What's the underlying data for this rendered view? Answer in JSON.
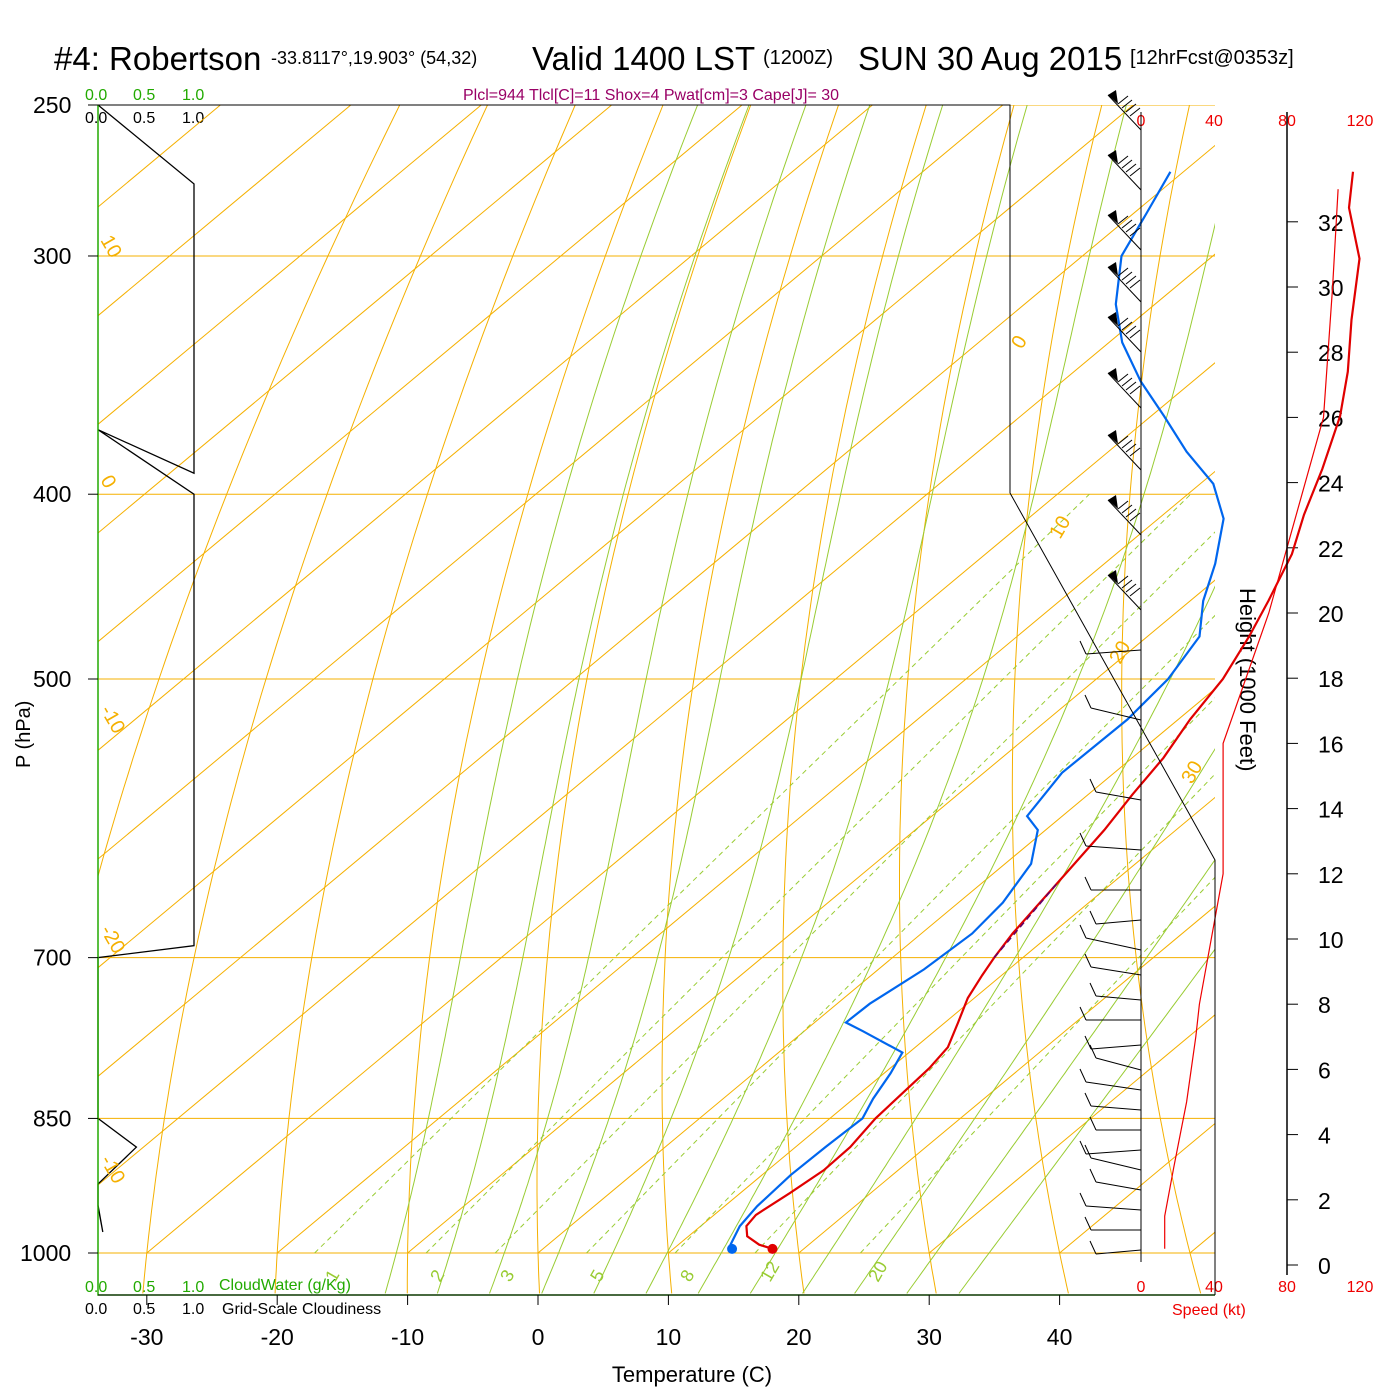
{
  "header": {
    "station": "#4: Robertson",
    "coords": "-33.8117°,19.903° (54,32)",
    "valid": "Valid 1400 LST",
    "zulu": "(1200Z)",
    "date": "SUN 30 Aug 2015",
    "forecast": "[12hrFcst@0353z]",
    "indices": "Plcl=944 Tlcl[C]=11 Shox=4 Pwat[cm]=3 Cape[J]= 30"
  },
  "colors": {
    "isotherm": "#f5b000",
    "dry_adiabat": "#f5b000",
    "moist_adiabat": "#99cc33",
    "mixing_ratio": "#99cc33",
    "temperature": "#e00000",
    "dewpoint": "#0066ee",
    "parcel": "#660066",
    "cloud_green": "#22aa00",
    "speed_red": "#ee0000",
    "indices_text": "#990066"
  },
  "cloud_panel": {
    "top_green_ticks": [
      "0.0",
      "0.5",
      "1.0"
    ],
    "top_black_ticks": [
      "0.0",
      "0.5",
      "1.0"
    ],
    "bottom_green_ticks": [
      "0.0",
      "0.5",
      "1.0"
    ],
    "bottom_black_ticks": [
      "0.0",
      "0.5",
      "1.0"
    ],
    "cloudwater_label": "CloudWater (g/Kg)",
    "cloudiness_label": "Grid-Scale Cloudiness"
  },
  "wind_panel": {
    "speed_ticks": [
      "0",
      "40",
      "80",
      "120"
    ],
    "speed_label": "Speed (kt)",
    "height_label": "Height (1000 Feet)",
    "height_ticks": [
      "0",
      "2",
      "4",
      "6",
      "8",
      "10",
      "12",
      "14",
      "16",
      "18",
      "20",
      "22",
      "24",
      "26",
      "28",
      "30",
      "32"
    ]
  },
  "chart_data": {
    "type": "line",
    "title": "#4: Robertson -33.8117°,19.903° (54,32) Valid 1400 LST (1200Z) SUN 30 Aug 2015 [12hrFcst@0353z]",
    "xlabel": "Temperature (C)",
    "ylabel": "P (hPa)",
    "x_ticks": [
      "-30",
      "-20",
      "-10",
      "0",
      "10",
      "20",
      "30",
      "40"
    ],
    "y_ticks": [
      "250",
      "300",
      "400",
      "500",
      "700",
      "850",
      "1000"
    ],
    "xlim": [
      -33,
      36
    ],
    "ylim": [
      1000,
      250
    ],
    "grid": true,
    "isotherm_labels": [
      "0",
      "10",
      "20",
      "30",
      "10",
      "0",
      "-10",
      "-20",
      "-10"
    ],
    "moist_adiabat_labels": [
      "1",
      "2",
      "3",
      "5",
      "8",
      "12",
      "20"
    ],
    "series": [
      {
        "name": "Temperature",
        "points": [
          [
            17.6,
            995
          ],
          [
            16.2,
            990
          ],
          [
            14.5,
            980
          ],
          [
            13.5,
            968
          ],
          [
            13.2,
            955
          ],
          [
            13.8,
            930
          ],
          [
            14.3,
            905
          ],
          [
            14.2,
            880
          ],
          [
            13.5,
            850
          ],
          [
            13.2,
            820
          ],
          [
            13.0,
            800
          ],
          [
            12.5,
            780
          ],
          [
            11.0,
            757
          ],
          [
            9.5,
            735
          ],
          [
            8.5,
            715
          ],
          [
            7.8,
            700
          ],
          [
            7.0,
            680
          ],
          [
            6.4,
            660
          ],
          [
            5.8,
            640
          ],
          [
            4.5,
            600
          ],
          [
            3.4,
            575
          ],
          [
            2.4,
            550
          ],
          [
            0.9,
            525
          ],
          [
            -0.3,
            500
          ],
          [
            -2.2,
            475
          ],
          [
            -4.0,
            455
          ],
          [
            -6.5,
            430
          ],
          [
            -9.2,
            410
          ],
          [
            -12.0,
            388
          ],
          [
            -15.5,
            364
          ],
          [
            -19.0,
            345
          ],
          [
            -23.5,
            324
          ],
          [
            -28.5,
            301
          ],
          [
            -34.0,
            283
          ],
          [
            -37.0,
            271
          ]
        ]
      },
      {
        "name": "Dewpoint",
        "points": [
          [
            14.5,
            995
          ],
          [
            14.0,
            990
          ],
          [
            13.0,
            968
          ],
          [
            12.5,
            945
          ],
          [
            12.2,
            910
          ],
          [
            12.3,
            880
          ],
          [
            12.5,
            850
          ],
          [
            11.5,
            830
          ],
          [
            10.5,
            805
          ],
          [
            9.5,
            785
          ],
          [
            4.5,
            765
          ],
          [
            2.4,
            757
          ],
          [
            2.5,
            740
          ],
          [
            3.5,
            710
          ],
          [
            3.9,
            680
          ],
          [
            3.4,
            655
          ],
          [
            2.0,
            625
          ],
          [
            -0.6,
            600
          ],
          [
            -2.7,
            590
          ],
          [
            -4.0,
            560
          ],
          [
            -3.9,
            525
          ],
          [
            -4.5,
            500
          ],
          [
            -6.0,
            475
          ],
          [
            -9.0,
            455
          ],
          [
            -11.5,
            435
          ],
          [
            -15.0,
            412
          ],
          [
            -19.0,
            395
          ],
          [
            -24.0,
            380
          ],
          [
            -29.0,
            364
          ],
          [
            -34.0,
            349
          ],
          [
            -39.0,
            333
          ],
          [
            -43.0,
            318
          ],
          [
            -47.0,
            300
          ],
          [
            -49.0,
            285
          ],
          [
            -51.0,
            271
          ]
        ]
      },
      {
        "name": "Parcel",
        "points": [
          [
            7.8,
            700
          ],
          [
            5.8,
            640
          ]
        ]
      },
      {
        "name": "Wind speed profile",
        "points": [
          [
            13,
            0.5
          ],
          [
            13,
            1.5
          ],
          [
            18,
            3
          ],
          [
            25,
            5
          ],
          [
            30,
            7
          ],
          [
            32,
            8
          ],
          [
            45,
            12
          ],
          [
            45,
            16
          ],
          [
            70,
            20
          ],
          [
            80,
            22
          ],
          [
            100,
            26
          ],
          [
            105,
            30
          ],
          [
            108,
            33
          ]
        ]
      },
      {
        "name": "Cloudiness",
        "points": [
          [
            0,
            250
          ],
          [
            1,
            275
          ],
          [
            1,
            390
          ],
          [
            0,
            370
          ],
          [
            1,
            400
          ],
          [
            1,
            690
          ],
          [
            0,
            700
          ],
          [
            0,
            850
          ],
          [
            0.4,
            880
          ],
          [
            0,
            920
          ],
          [
            0,
            945
          ],
          [
            0.05,
            975
          ],
          [
            0,
            980
          ]
        ]
      }
    ]
  }
}
